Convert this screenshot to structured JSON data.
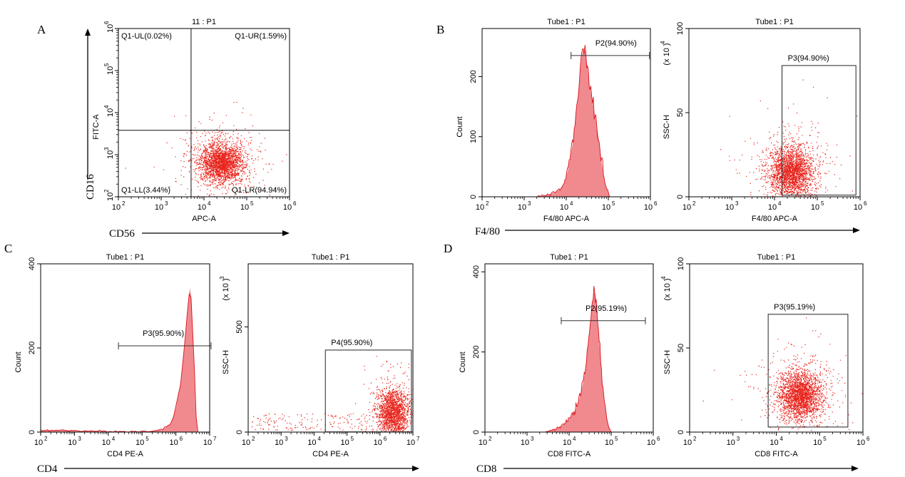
{
  "figure": {
    "colors": {
      "event": "#e8231b",
      "fill": "#f08a8f",
      "line": "#d9141c",
      "axis": "#000000"
    }
  },
  "chart_data": [
    {
      "id": "A-cd56-cd16",
      "panel": "A",
      "type": "scatter",
      "title": "11 : P1",
      "xlabel": "APC-A",
      "ylabel": "FITC-A",
      "marker_x": "CD56",
      "marker_y": "CD16",
      "x_scale": "log",
      "xlim": [
        100,
        1000000
      ],
      "xticks": [
        "2",
        "3",
        "4",
        "5",
        "6"
      ],
      "y_scale": "log",
      "ylim": [
        100,
        1000000
      ],
      "yticks": [
        "2",
        "3",
        "4",
        "5",
        "6"
      ],
      "quadrant_divider": {
        "x": 5000,
        "y": 3800
      },
      "quadrants": [
        {
          "label": "Q1-UL(0.02%)",
          "position": "top-left"
        },
        {
          "label": "Q1-UR(1.59%)",
          "position": "top-right"
        },
        {
          "label": "Q1-LL(3.44%)",
          "position": "bottom-left"
        },
        {
          "label": "Q1-LR(94.94%)",
          "position": "bottom-right"
        }
      ],
      "population": {
        "center": [
          25000,
          650
        ],
        "spread": "dense"
      }
    },
    {
      "id": "B-hist",
      "panel": "B",
      "type": "area",
      "title": "Tube1 : P1",
      "xlabel": "F4/80 APC-A",
      "ylabel": "Count",
      "marker_x": "F4/80",
      "x_scale": "log",
      "xlim": [
        100,
        1000000
      ],
      "xticks": [
        "2",
        "3",
        "4",
        "5",
        "6"
      ],
      "ylim": [
        0,
        280
      ],
      "yticks": [
        "0",
        "100",
        "200"
      ],
      "gate": {
        "label": "P2(94.90%)",
        "x_range": [
          13000,
          950000
        ],
        "y": 235
      },
      "curve": {
        "x": [
          1800,
          3000,
          5000,
          7000,
          9000,
          11000,
          14000,
          17000,
          20000,
          23000,
          26000,
          29000,
          32000,
          36000,
          42000,
          50000,
          60000,
          70000,
          85000,
          110000
        ],
        "y": [
          0,
          2,
          6,
          12,
          22,
          45,
          85,
          135,
          185,
          232,
          248,
          240,
          215,
          185,
          160,
          130,
          95,
          55,
          20,
          0
        ]
      }
    },
    {
      "id": "B-scatter",
      "panel": "B",
      "type": "scatter",
      "title": "Tube1 : P1",
      "xlabel": "F4/80 APC-A",
      "ylabel": "SSC-H",
      "y_multiplier": "4",
      "x_scale": "log",
      "xlim": [
        100,
        1000000
      ],
      "xticks": [
        "2",
        "3",
        "4",
        "5",
        "6"
      ],
      "ylim": [
        0,
        100
      ],
      "yticks": [
        "0",
        "50",
        "100"
      ],
      "gate": {
        "label": "P3(94.90%)",
        "x_range": [
          15000,
          800000
        ],
        "y_range": [
          1,
          78
        ]
      },
      "population": {
        "center": [
          25000,
          15
        ],
        "spread": "dense"
      }
    },
    {
      "id": "C-hist",
      "panel": "C",
      "type": "area",
      "title": "Tube1 : P1",
      "xlabel": "CD4 PE-A",
      "ylabel": "Count",
      "marker_x": "CD4",
      "x_scale": "log",
      "xlim": [
        100,
        10000000
      ],
      "xticks": [
        "2",
        "3",
        "4",
        "5",
        "6",
        "7"
      ],
      "ylim": [
        0,
        400
      ],
      "yticks": [
        "0",
        "200",
        "400"
      ],
      "gate": {
        "label": "P3(95.90%)",
        "x_range": [
          20000,
          11000000
        ],
        "y": 205
      },
      "curve": {
        "x": [
          100,
          500,
          1000,
          5000,
          30000,
          150000,
          400000,
          700000,
          1000000,
          1400000,
          1800000,
          2200000,
          2600000,
          2900000,
          3300000,
          3800000,
          4500000
        ],
        "y": [
          4,
          5,
          3,
          2,
          1,
          2,
          6,
          20,
          55,
          120,
          200,
          290,
          342,
          320,
          210,
          60,
          0
        ]
      }
    },
    {
      "id": "C-scatter",
      "panel": "C",
      "type": "scatter",
      "title": "Tube1 : P1",
      "xlabel": "CD4 PE-A",
      "ylabel": "SSC-H",
      "y_multiplier": "3",
      "x_scale": "log",
      "xlim": [
        100,
        10000000
      ],
      "xticks": [
        "2",
        "3",
        "4",
        "5",
        "6",
        "7"
      ],
      "ylim": [
        0,
        800
      ],
      "yticks": [
        "0",
        "500"
      ],
      "gate": {
        "label": "P4(95.90%)",
        "x_range": [
          22000,
          9000000
        ],
        "y_range": [
          1,
          390
        ]
      },
      "population": {
        "center": [
          2500000,
          95
        ],
        "spread": "dense"
      }
    },
    {
      "id": "D-hist",
      "panel": "D",
      "type": "area",
      "title": "Tube1 : P1",
      "xlabel": "CD8 FITC-A",
      "ylabel": "Count",
      "marker_x": "CD8",
      "x_scale": "log",
      "xlim": [
        100,
        1000000
      ],
      "xticks": [
        "2",
        "3",
        "4",
        "5",
        "6"
      ],
      "ylim": [
        0,
        420
      ],
      "yticks": [
        "0",
        "200",
        "400"
      ],
      "gate": {
        "label": "P2(95.19%)",
        "x_range": [
          6500,
          650000
        ],
        "y": 278
      },
      "curve": {
        "x": [
          2500,
          4000,
          6000,
          8000,
          11000,
          15000,
          19000,
          24000,
          29000,
          34000,
          38000,
          42000,
          46000,
          52000,
          60000,
          70000,
          85000,
          100000
        ],
        "y": [
          0,
          5,
          12,
          22,
          38,
          60,
          95,
          150,
          230,
          300,
          350,
          345,
          310,
          230,
          140,
          70,
          18,
          0
        ]
      }
    },
    {
      "id": "D-scatter",
      "panel": "D",
      "type": "scatter",
      "title": "Tube1 : P1",
      "xlabel": "CD8 FITC-A",
      "ylabel": "SSC-H",
      "y_multiplier": "4",
      "x_scale": "log",
      "xlim": [
        100,
        1000000
      ],
      "xticks": [
        "2",
        "3",
        "4",
        "5",
        "6"
      ],
      "ylim": [
        0,
        100
      ],
      "yticks": [
        "0",
        "50",
        "100"
      ],
      "gate": {
        "label": "P3(95.19%)",
        "x_range": [
          6500,
          450000
        ],
        "y_range": [
          3,
          70
        ]
      },
      "population": {
        "center": [
          35000,
          22
        ],
        "spread": "dense"
      }
    }
  ]
}
